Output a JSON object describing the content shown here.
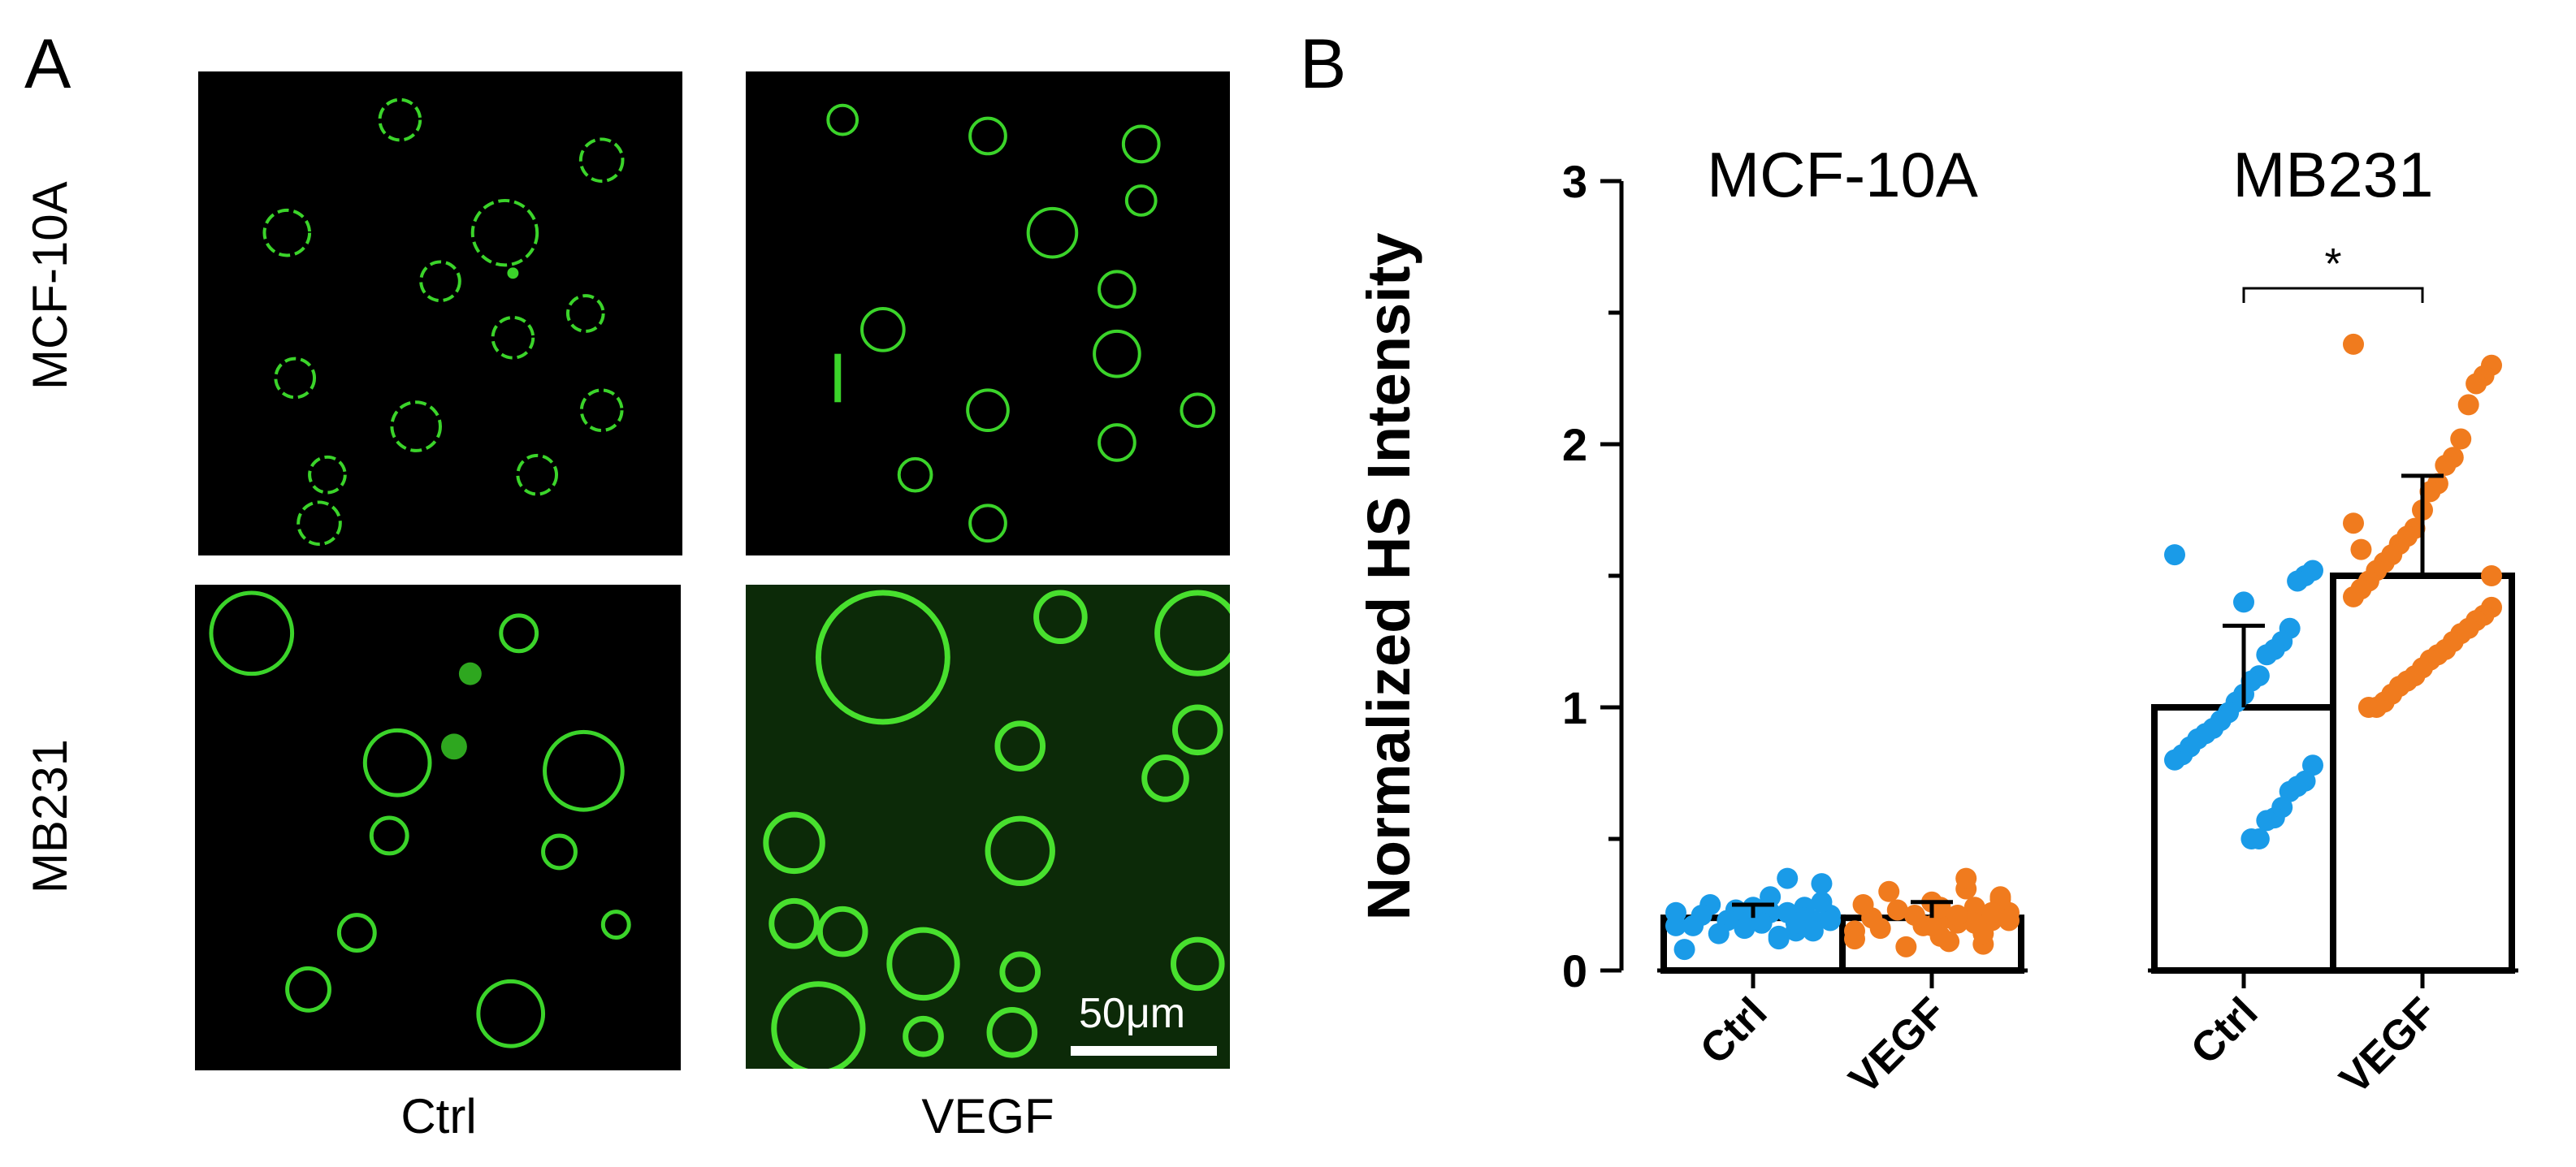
{
  "panel_a": {
    "letter": "A",
    "rows": [
      "MCF-10A",
      "MB231"
    ],
    "columns": [
      "Ctrl",
      "VEGF"
    ],
    "scale_bar": "50μm",
    "colors": {
      "cell_stain": "#2ecc1f",
      "background": "#000000"
    }
  },
  "panel_b": {
    "letter": "B"
  },
  "chart_data": {
    "type": "bar",
    "ylabel": "Normalized HS Intensity",
    "ylim": [
      0,
      3
    ],
    "yticks": [
      0,
      1,
      2,
      3
    ],
    "group_labels": [
      "MCF-10A",
      "MB231"
    ],
    "categories": [
      "Ctrl",
      "VEGF",
      "Ctrl",
      "VEGF"
    ],
    "groups": [
      0,
      0,
      1,
      1
    ],
    "values": [
      0.2,
      0.2,
      1.0,
      1.5
    ],
    "error_sd": [
      0.05,
      0.06,
      0.31,
      0.38
    ],
    "colors": [
      "#1a9be8",
      "#f07b1e",
      "#1a9be8",
      "#f07b1e"
    ],
    "points": [
      [
        0.17,
        0.21,
        0.33,
        0.19,
        0.24,
        0.15,
        0.22,
        0.12,
        0.28,
        0.18,
        0.2,
        0.16,
        0.23,
        0.19,
        0.14,
        0.25,
        0.21,
        0.17,
        0.08,
        0.22,
        0.19,
        0.26,
        0.15,
        0.2,
        0.18,
        0.35,
        0.13,
        0.22,
        0.18,
        0.24
      ],
      [
        0.15,
        0.22,
        0.28,
        0.19,
        0.1,
        0.24,
        0.31,
        0.18,
        0.2,
        0.13,
        0.26,
        0.17,
        0.21,
        0.09,
        0.23,
        0.3,
        0.16,
        0.2,
        0.25,
        0.12,
        0.19,
        0.27,
        0.22,
        0.14,
        0.18,
        0.35,
        0.21,
        0.11,
        0.24,
        0.17
      ],
      [
        1.58,
        1.52,
        1.5,
        1.48,
        1.3,
        1.25,
        1.22,
        1.2,
        1.12,
        1.1,
        1.05,
        1.02,
        0.98,
        0.95,
        0.92,
        0.9,
        0.88,
        0.85,
        0.82,
        0.8,
        0.78,
        0.72,
        0.7,
        0.68,
        0.62,
        0.58,
        0.57,
        0.5,
        0.5,
        1.4
      ],
      [
        2.38,
        2.3,
        2.26,
        2.23,
        2.15,
        2.02,
        1.95,
        1.92,
        1.85,
        1.82,
        1.75,
        1.68,
        1.65,
        1.62,
        1.58,
        1.55,
        1.52,
        1.48,
        1.45,
        1.42,
        1.38,
        1.35,
        1.33,
        1.3,
        1.28,
        1.25,
        1.22,
        1.2,
        1.18,
        1.15,
        1.12,
        1.1,
        1.08,
        1.05,
        1.02,
        1.0,
        1.0,
        1.6,
        1.7,
        1.5
      ]
    ],
    "significance": {
      "between": [
        2,
        3
      ],
      "label": "*"
    }
  }
}
